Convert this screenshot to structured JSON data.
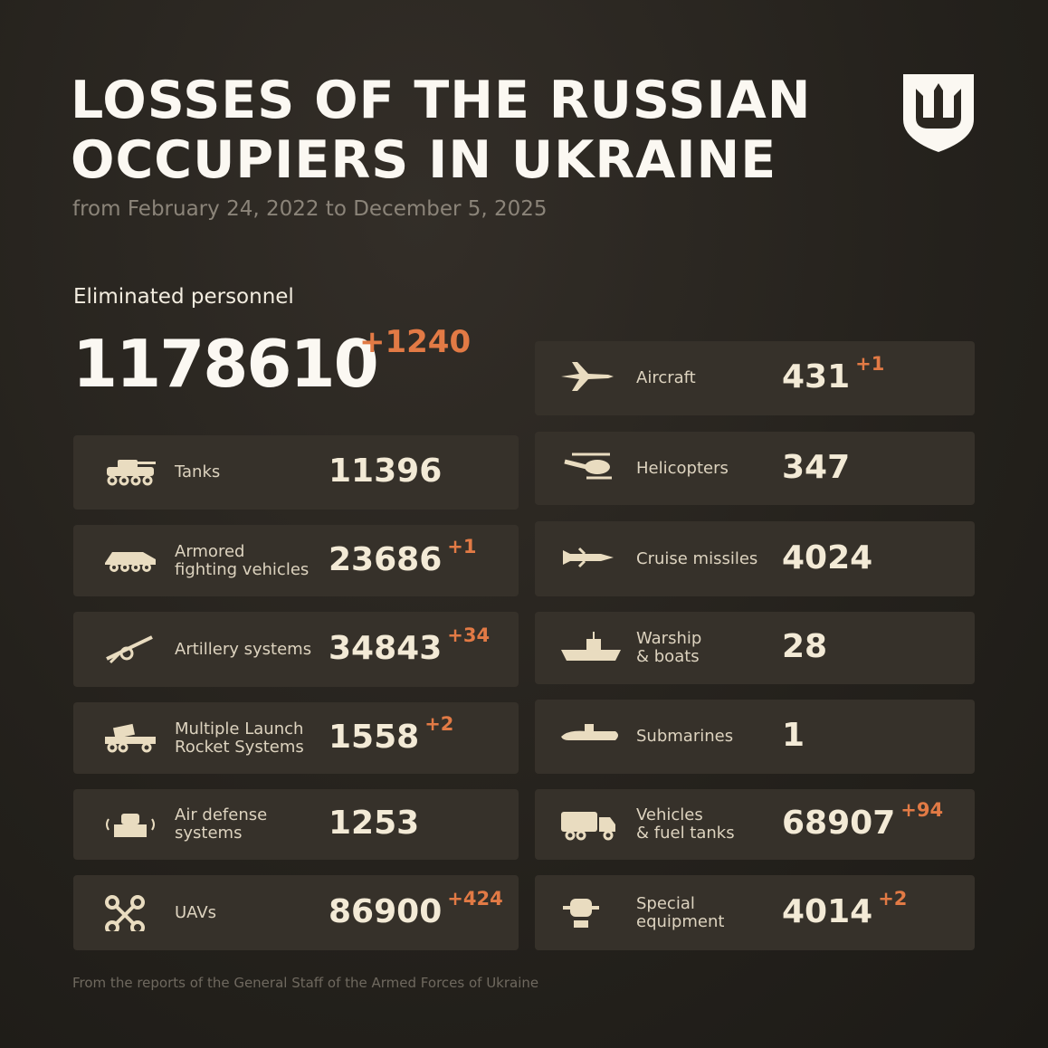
{
  "header": {
    "title": [
      "LOSSES OF THE RUSSIAN",
      "OCCUPIERS IN UKRAINE"
    ],
    "subtitle": "from February 24, 2022 to December 5, 2025"
  },
  "personnel": {
    "label": "Eliminated personnel",
    "value": 1178610,
    "change": "+1240"
  },
  "left_column": [
    {
      "label": [
        "Tanks"
      ],
      "value": 11396
    },
    {
      "label": [
        "Armored",
        "fighting vehicles"
      ],
      "value": 23686,
      "change": "+1"
    },
    {
      "label": [
        "Artillery systems"
      ],
      "value": 34843,
      "change": "+34"
    },
    {
      "label": [
        "Multiple Launch",
        "Rocket Systems"
      ],
      "value": 1558,
      "change": "+2"
    },
    {
      "label": [
        "Air defense",
        "systems"
      ],
      "value": 1253
    },
    {
      "label": [
        "UAVs"
      ],
      "value": 86900,
      "change": "+424"
    }
  ],
  "right_column": [
    {
      "label": [
        "Aircraft"
      ],
      "value": 431,
      "change": "+1"
    },
    {
      "label": [
        "Helicopters"
      ],
      "value": 347
    },
    {
      "label": [
        "Cruise missiles"
      ],
      "value": 4024
    },
    {
      "label": [
        "Warship",
        "& boats"
      ],
      "value": 28
    },
    {
      "label": [
        "Submarines"
      ],
      "value": 1
    },
    {
      "label": [
        "Vehicles",
        "& fuel tanks"
      ],
      "value": 68907,
      "change": "+94"
    },
    {
      "label": [
        "Special",
        "equipment"
      ],
      "value": 4014,
      "change": "+2"
    }
  ],
  "footer": "From the reports of the General Staff of the Armed Forces of Ukraine"
}
